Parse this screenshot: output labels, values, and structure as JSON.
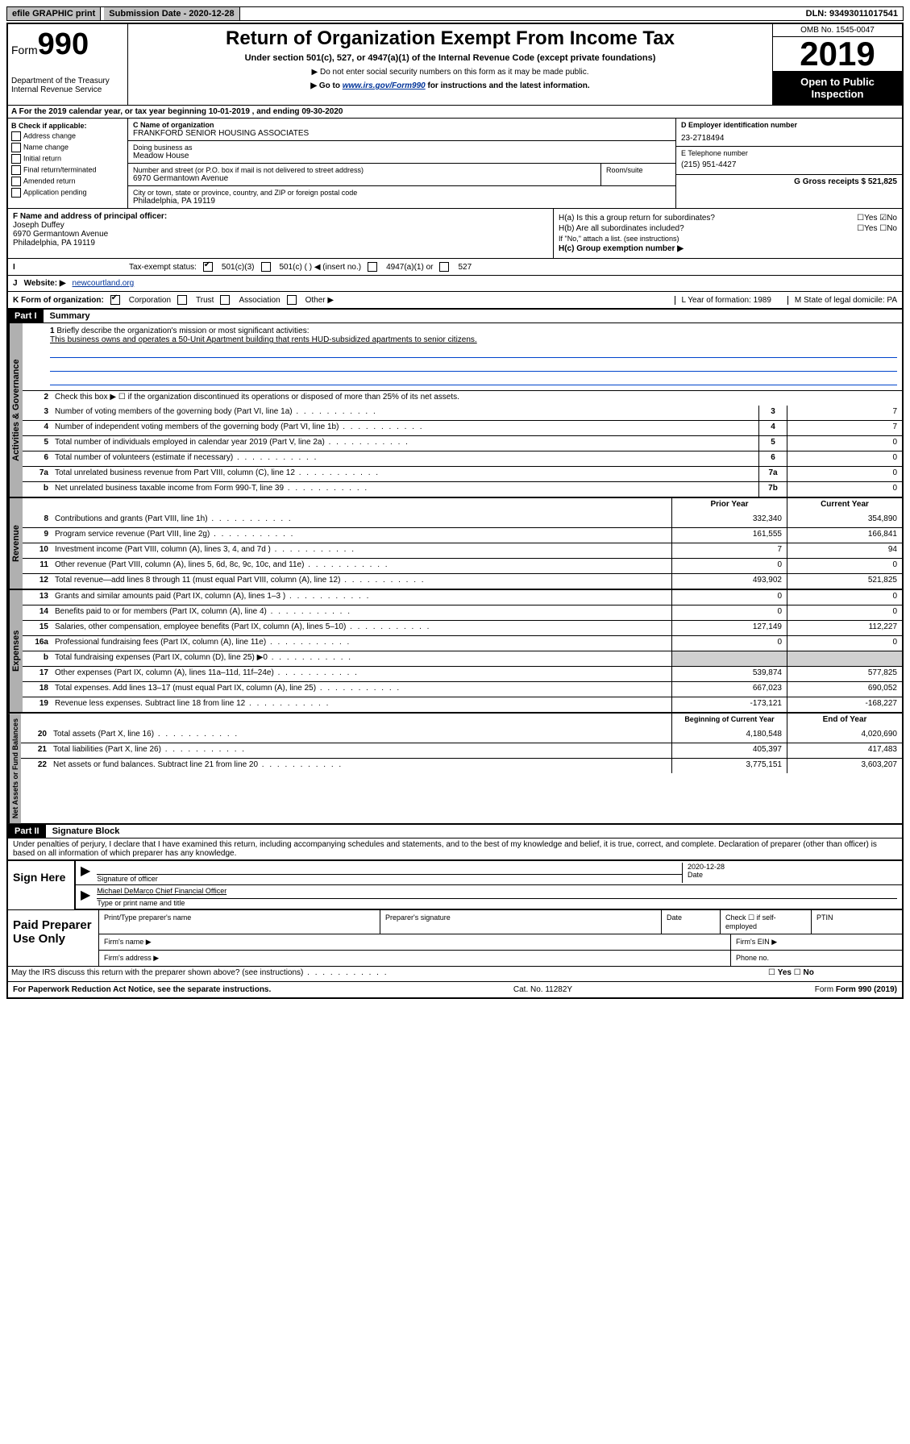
{
  "topbar": {
    "efile": "efile GRAPHIC print",
    "sub_label": "Submission Date - 2020-12-28",
    "dln": "DLN: 93493011017541"
  },
  "header": {
    "form_prefix": "Form",
    "form_no": "990",
    "dept": "Department of the Treasury\nInternal Revenue Service",
    "title": "Return of Organization Exempt From Income Tax",
    "sub1": "Under section 501(c), 527, or 4947(a)(1) of the Internal Revenue Code (except private foundations)",
    "sub2": "▶ Do not enter social security numbers on this form as it may be made public.",
    "sub3_pre": "▶ Go to ",
    "sub3_link": "www.irs.gov/Form990",
    "sub3_post": " for instructions and the latest information.",
    "omb": "OMB No. 1545-0047",
    "year": "2019",
    "open": "Open to Public Inspection"
  },
  "row_a": "A For the 2019 calendar year, or tax year beginning 10-01-2019   , and ending 09-30-2020",
  "box_b": {
    "title": "B Check if applicable:",
    "opts": [
      "Address change",
      "Name change",
      "Initial return",
      "Final return/terminated",
      "Amended return",
      "Application pending"
    ]
  },
  "box_c": {
    "lbl_name": "C Name of organization",
    "org": "FRANKFORD SENIOR HOUSING ASSOCIATES",
    "lbl_dba": "Doing business as",
    "dba": "Meadow House",
    "lbl_addr": "Number and street (or P.O. box if mail is not delivered to street address)",
    "lbl_room": "Room/suite",
    "addr": "6970 Germantown Avenue",
    "lbl_city": "City or town, state or province, country, and ZIP or foreign postal code",
    "city": "Philadelphia, PA  19119"
  },
  "box_d": {
    "lbl": "D Employer identification number",
    "val": "23-2718494"
  },
  "box_e": {
    "lbl": "E Telephone number",
    "val": "(215) 951-4427"
  },
  "box_g": {
    "lbl": "G Gross receipts $ 521,825"
  },
  "box_f": {
    "lbl": "F  Name and address of principal officer:",
    "name": "Joseph Duffey",
    "addr1": "6970 Germantown Avenue",
    "addr2": "Philadelphia, PA  19119"
  },
  "box_h": {
    "a": "H(a)  Is this a group return for subordinates?",
    "a_ans": "No",
    "b": "H(b)  Are all subordinates included?",
    "b_note": "If \"No,\" attach a list. (see instructions)",
    "c": "H(c)  Group exemption number ▶"
  },
  "status": {
    "lbl": "Tax-exempt status:",
    "opt1": "501(c)(3)",
    "opt2": "501(c) (  ) ◀ (insert no.)",
    "opt3": "4947(a)(1) or",
    "opt4": "527"
  },
  "website": {
    "lbl": "Website: ▶",
    "val": "newcourtland.org"
  },
  "korg": {
    "lbl": "K Form of organization:",
    "opts": [
      "Corporation",
      "Trust",
      "Association",
      "Other ▶"
    ],
    "l": "L Year of formation: 1989",
    "m": "M State of legal domicile: PA"
  },
  "part1": {
    "hdr": "Part I",
    "title": "Summary"
  },
  "mission": {
    "num": "1",
    "lbl": "Briefly describe the organization's mission or most significant activities:",
    "text": "This business owns and operates a 50-Unit Apartment building that rents HUD-subsidized apartments to senior citizens."
  },
  "line2": "Check this box ▶ ☐  if the organization discontinued its operations or disposed of more than 25% of its net assets.",
  "gov_lines": [
    {
      "n": "3",
      "t": "Number of voting members of the governing body (Part VI, line 1a)",
      "box": "3",
      "v": "7"
    },
    {
      "n": "4",
      "t": "Number of independent voting members of the governing body (Part VI, line 1b)",
      "box": "4",
      "v": "7"
    },
    {
      "n": "5",
      "t": "Total number of individuals employed in calendar year 2019 (Part V, line 2a)",
      "box": "5",
      "v": "0"
    },
    {
      "n": "6",
      "t": "Total number of volunteers (estimate if necessary)",
      "box": "6",
      "v": "0"
    },
    {
      "n": "7a",
      "t": "Total unrelated business revenue from Part VIII, column (C), line 12",
      "box": "7a",
      "v": "0"
    },
    {
      "n": "b",
      "t": "Net unrelated business taxable income from Form 990-T, line 39",
      "box": "7b",
      "v": "0"
    }
  ],
  "col_hdrs": {
    "prior": "Prior Year",
    "current": "Current Year"
  },
  "rev_lines": [
    {
      "n": "8",
      "t": "Contributions and grants (Part VIII, line 1h)",
      "p": "332,340",
      "c": "354,890"
    },
    {
      "n": "9",
      "t": "Program service revenue (Part VIII, line 2g)",
      "p": "161,555",
      "c": "166,841"
    },
    {
      "n": "10",
      "t": "Investment income (Part VIII, column (A), lines 3, 4, and 7d )",
      "p": "7",
      "c": "94"
    },
    {
      "n": "11",
      "t": "Other revenue (Part VIII, column (A), lines 5, 6d, 8c, 9c, 10c, and 11e)",
      "p": "0",
      "c": "0"
    },
    {
      "n": "12",
      "t": "Total revenue—add lines 8 through 11 (must equal Part VIII, column (A), line 12)",
      "p": "493,902",
      "c": "521,825"
    }
  ],
  "exp_lines": [
    {
      "n": "13",
      "t": "Grants and similar amounts paid (Part IX, column (A), lines 1–3 )",
      "p": "0",
      "c": "0"
    },
    {
      "n": "14",
      "t": "Benefits paid to or for members (Part IX, column (A), line 4)",
      "p": "0",
      "c": "0"
    },
    {
      "n": "15",
      "t": "Salaries, other compensation, employee benefits (Part IX, column (A), lines 5–10)",
      "p": "127,149",
      "c": "112,227"
    },
    {
      "n": "16a",
      "t": "Professional fundraising fees (Part IX, column (A), line 11e)",
      "p": "0",
      "c": "0"
    },
    {
      "n": "b",
      "t": "Total fundraising expenses (Part IX, column (D), line 25) ▶0",
      "p": "",
      "c": "",
      "shade": true
    },
    {
      "n": "17",
      "t": "Other expenses (Part IX, column (A), lines 11a–11d, 11f–24e)",
      "p": "539,874",
      "c": "577,825"
    },
    {
      "n": "18",
      "t": "Total expenses. Add lines 13–17 (must equal Part IX, column (A), line 25)",
      "p": "667,023",
      "c": "690,052"
    },
    {
      "n": "19",
      "t": "Revenue less expenses. Subtract line 18 from line 12",
      "p": "-173,121",
      "c": "-168,227"
    }
  ],
  "na_hdrs": {
    "beg": "Beginning of Current Year",
    "end": "End of Year"
  },
  "na_lines": [
    {
      "n": "20",
      "t": "Total assets (Part X, line 16)",
      "p": "4,180,548",
      "c": "4,020,690"
    },
    {
      "n": "21",
      "t": "Total liabilities (Part X, line 26)",
      "p": "405,397",
      "c": "417,483"
    },
    {
      "n": "22",
      "t": "Net assets or fund balances. Subtract line 21 from line 20",
      "p": "3,775,151",
      "c": "3,603,207"
    }
  ],
  "vtabs": {
    "gov": "Activities & Governance",
    "rev": "Revenue",
    "exp": "Expenses",
    "na": "Net Assets or Fund Balances"
  },
  "part2": {
    "hdr": "Part II",
    "title": "Signature Block"
  },
  "perjury": "Under penalties of perjury, I declare that I have examined this return, including accompanying schedules and statements, and to the best of my knowledge and belief, it is true, correct, and complete. Declaration of preparer (other than officer) is based on all information of which preparer has any knowledge.",
  "sign": {
    "here": "Sign Here",
    "sig_lbl": "Signature of officer",
    "date": "2020-12-28",
    "date_lbl": "Date",
    "name": "Michael DeMarco  Chief Financial Officer",
    "name_lbl": "Type or print name and title"
  },
  "prep": {
    "title": "Paid Preparer Use Only",
    "h1": "Print/Type preparer's name",
    "h2": "Preparer's signature",
    "h3": "Date",
    "h4": "Check ☐ if self-employed",
    "h5": "PTIN",
    "firm": "Firm's name   ▶",
    "ein": "Firm's EIN ▶",
    "addr": "Firm's address ▶",
    "phone": "Phone no."
  },
  "discuss": "May the IRS discuss this return with the preparer shown above? (see instructions)",
  "footer": {
    "left": "For Paperwork Reduction Act Notice, see the separate instructions.",
    "mid": "Cat. No. 11282Y",
    "right": "Form 990 (2019)"
  }
}
